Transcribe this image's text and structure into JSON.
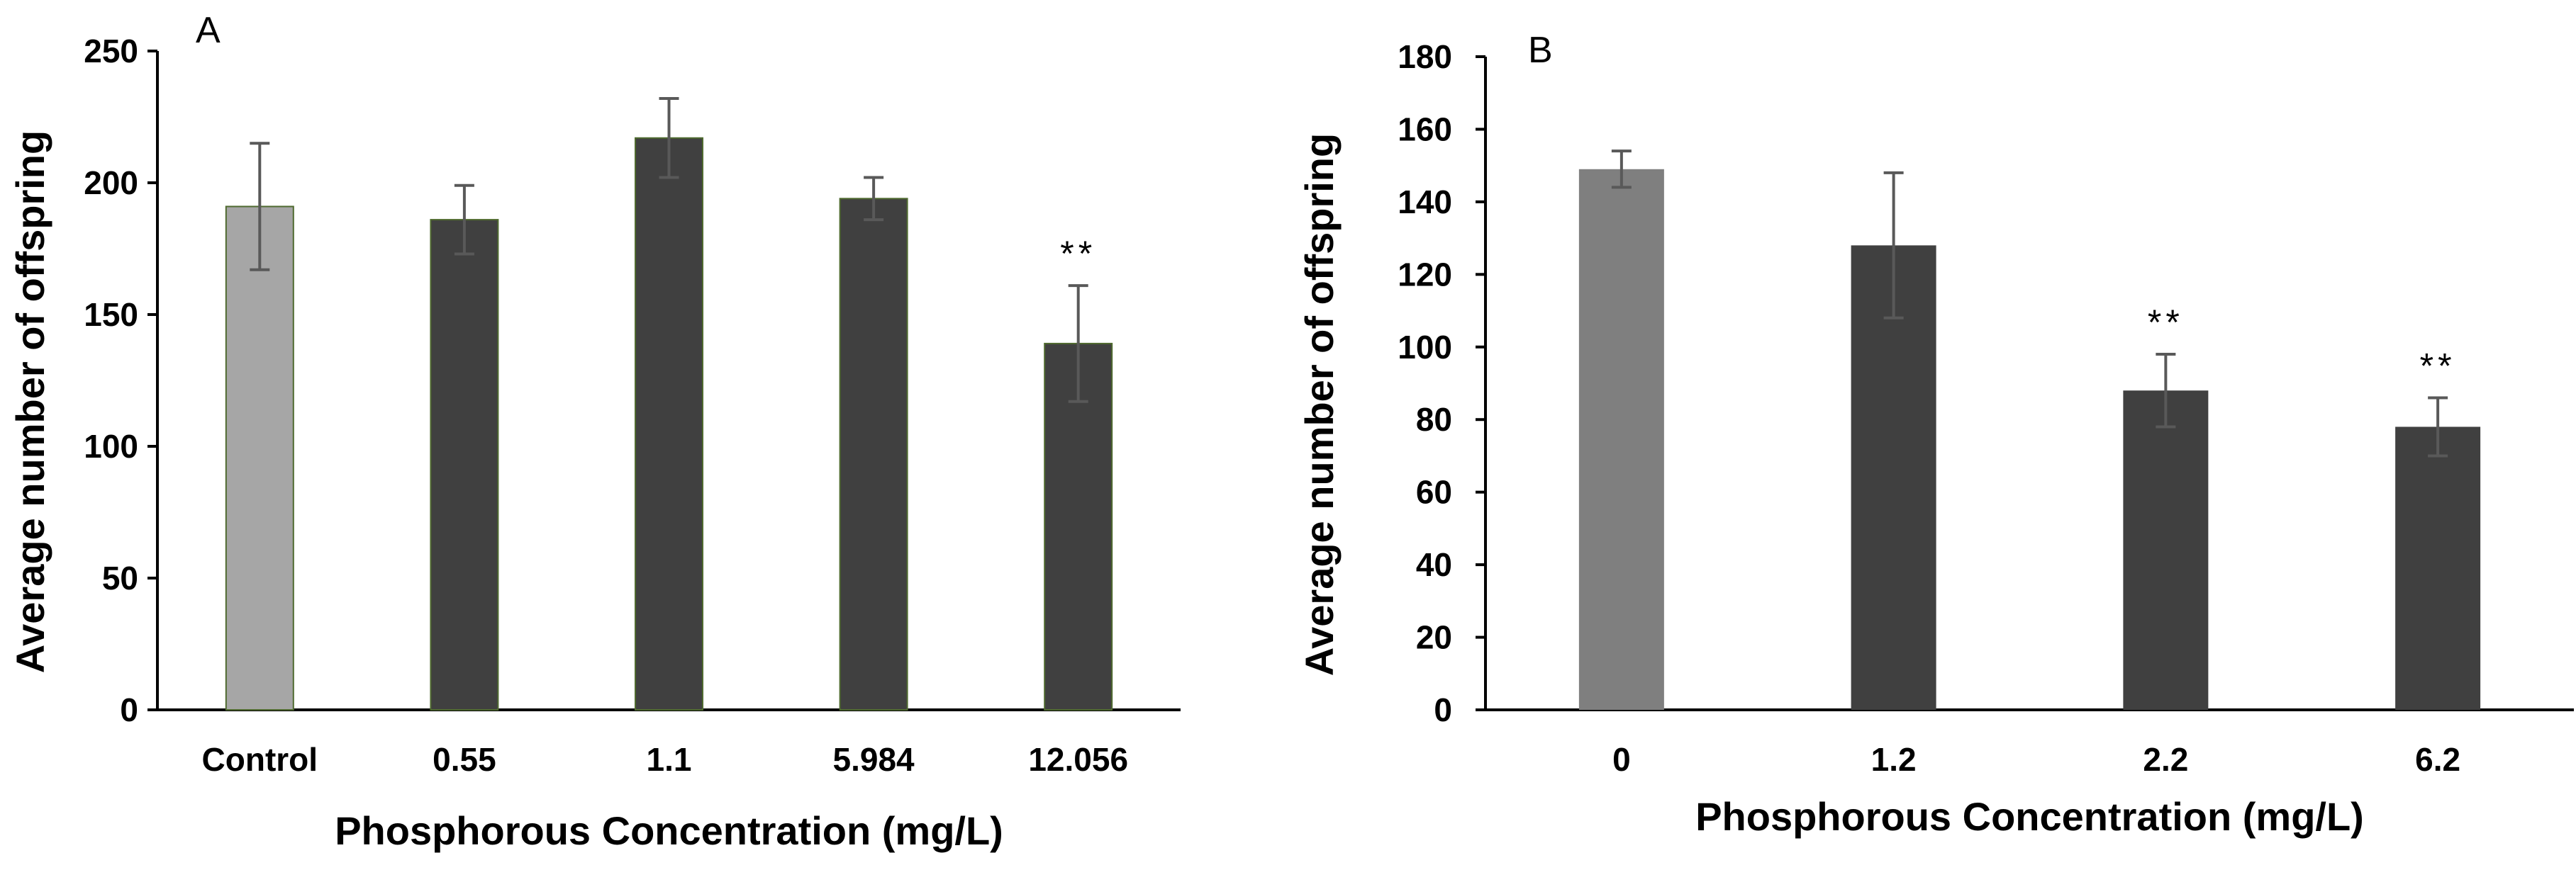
{
  "chart_data": [
    {
      "type": "bar",
      "panel_label": "A",
      "xlabel": "Phosphorous Concentration (mg/L)",
      "ylabel": "Average number of offspring",
      "ylim": [
        0,
        250
      ],
      "yticks": [
        0,
        50,
        100,
        150,
        200,
        250
      ],
      "categories": [
        "Control",
        "0.55",
        "1.1",
        "5.984",
        "12.056"
      ],
      "values": [
        191,
        186,
        217,
        194,
        139
      ],
      "errors": [
        24,
        13,
        15,
        8,
        22
      ],
      "significance": [
        "",
        "",
        "",
        "",
        "**"
      ],
      "bar_colors": [
        "#a6a6a6",
        "#404040",
        "#404040",
        "#404040",
        "#404040"
      ],
      "bar_stroke": "#4f6a2f",
      "grid": false
    },
    {
      "type": "bar",
      "panel_label": "B",
      "xlabel": "Phosphorous Concentration (mg/L)",
      "ylabel": "Average number of offspring",
      "ylim": [
        0,
        180
      ],
      "yticks": [
        0,
        20,
        40,
        60,
        80,
        100,
        120,
        140,
        160,
        180
      ],
      "categories": [
        "0",
        "1.2",
        "2.2",
        "6.2"
      ],
      "values": [
        149,
        128,
        88,
        78
      ],
      "errors": [
        5,
        20,
        10,
        8
      ],
      "significance": [
        "",
        "",
        "**",
        "**"
      ],
      "bar_colors": [
        "#7f7f7f",
        "#404040",
        "#404040",
        "#404040"
      ],
      "bar_stroke": "none",
      "grid": false
    }
  ]
}
